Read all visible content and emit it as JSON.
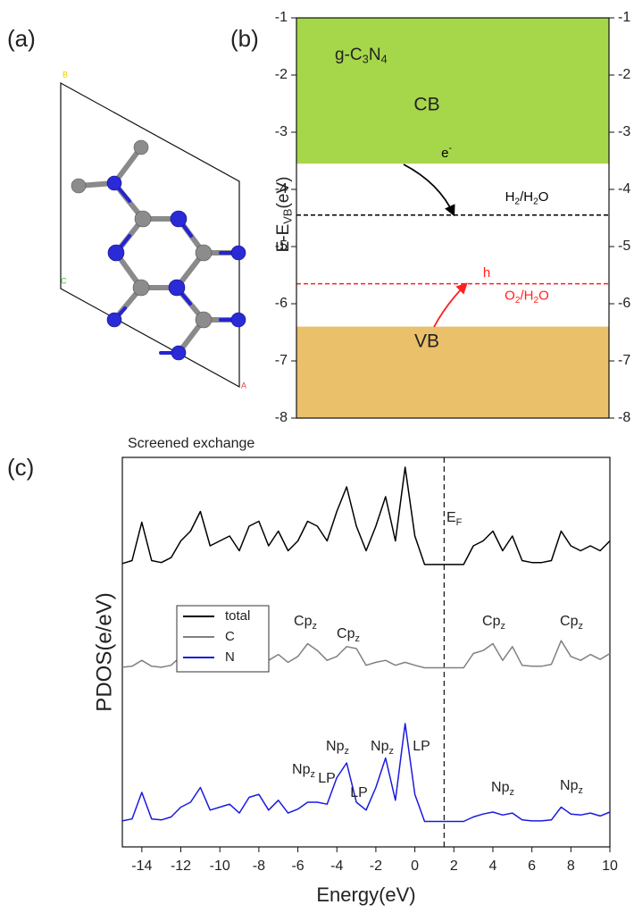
{
  "panel_a": {
    "label": "(a)",
    "axis_labels": [
      "B",
      "C",
      "A"
    ]
  },
  "chart_data": [
    {
      "type": "band",
      "label": "(b)",
      "ylabel_parts": [
        "E-E",
        "VB",
        "(eV)"
      ],
      "ylim": [
        -1,
        -8
      ],
      "yticks": [
        -1,
        -2,
        -3,
        -4,
        -5,
        -6,
        -7,
        -8
      ],
      "material_parts": [
        "g-C",
        "3",
        "N",
        "4"
      ],
      "bands": [
        {
          "name": "CB",
          "from": -1,
          "to": -3.55,
          "color": "#a6d64a"
        },
        {
          "name": "VB",
          "from": -6.4,
          "to": -8,
          "color": "#ebc06b"
        }
      ],
      "levels": [
        {
          "name_parts": [
            "H",
            "2",
            "/H",
            "2",
            "O"
          ],
          "value": -4.45,
          "color": "#000000"
        },
        {
          "name_parts": [
            "O",
            "2",
            "/H",
            "2",
            "O"
          ],
          "value": -5.65,
          "color": "#ff2020"
        }
      ],
      "carriers": [
        {
          "parts": [
            "e",
            "-"
          ],
          "color": "#000000"
        },
        {
          "parts": [
            "h"
          ],
          "color": "#ff2020"
        }
      ]
    },
    {
      "type": "line",
      "label": "(c)",
      "title": "Screened exchange",
      "xlabel": "Energy(eV)",
      "ylabel": "PDOS(e/eV)",
      "xlim": [
        -15,
        10
      ],
      "xticks": [
        -14,
        -12,
        -10,
        -8,
        -6,
        -4,
        -2,
        0,
        2,
        4,
        6,
        8,
        10
      ],
      "x": [
        -15,
        -14.5,
        -14,
        -13.5,
        -13,
        -12.5,
        -12,
        -11.5,
        -11,
        -10.5,
        -10,
        -9.5,
        -9,
        -8.5,
        -8,
        -7.5,
        -7,
        -6.5,
        -6,
        -5.5,
        -5,
        -4.5,
        -4,
        -3.5,
        -3,
        -2.5,
        -2,
        -1.5,
        -1,
        -0.5,
        0,
        0.5,
        1,
        1.5,
        2,
        2.5,
        3,
        3.5,
        4,
        4.5,
        5,
        5.5,
        6,
        6.5,
        7,
        7.5,
        8,
        8.5,
        9,
        9.5,
        10
      ],
      "series": [
        {
          "name": "total",
          "color": "#000000",
          "values": [
            0.2,
            0.5,
            4.4,
            0.5,
            0.3,
            0.8,
            2.5,
            3.5,
            5.5,
            2.0,
            2.5,
            3.0,
            1.5,
            4.0,
            4.5,
            2.0,
            3.5,
            1.5,
            2.5,
            4.5,
            4.0,
            2.5,
            5.5,
            8.0,
            4.0,
            1.5,
            4.0,
            7.0,
            2.5,
            10.0,
            3.0,
            0.1,
            0.1,
            0.1,
            0.1,
            0.1,
            2.0,
            2.5,
            3.5,
            1.5,
            3.0,
            0.5,
            0.3,
            0.3,
            0.5,
            3.5,
            2.0,
            1.5,
            2.0,
            1.5,
            2.5
          ]
        },
        {
          "name": "C",
          "color": "#808080",
          "values": [
            0.1,
            0.2,
            0.8,
            0.2,
            0.1,
            0.3,
            1.2,
            1.5,
            2.2,
            0.8,
            1.0,
            1.2,
            0.6,
            1.6,
            1.8,
            0.8,
            1.4,
            0.6,
            1.2,
            2.5,
            1.8,
            0.8,
            1.2,
            2.2,
            2.0,
            0.3,
            0.6,
            0.8,
            0.3,
            0.6,
            0.3,
            0.05,
            0.05,
            0.05,
            0.05,
            0.05,
            1.5,
            1.8,
            2.5,
            0.8,
            2.2,
            0.3,
            0.2,
            0.2,
            0.4,
            2.8,
            1.2,
            0.8,
            1.4,
            0.9,
            1.5
          ]
        },
        {
          "name": "N",
          "color": "#1a1adf",
          "values": [
            0.1,
            0.3,
            3.0,
            0.3,
            0.2,
            0.5,
            1.5,
            2.0,
            3.5,
            1.2,
            1.5,
            1.8,
            0.9,
            2.5,
            2.8,
            1.2,
            2.2,
            0.9,
            1.3,
            2.0,
            2.0,
            1.8,
            4.5,
            6.0,
            2.0,
            1.2,
            3.5,
            6.5,
            2.2,
            10.0,
            2.8,
            0.05,
            0.05,
            0.05,
            0.05,
            0.05,
            0.5,
            0.8,
            1.0,
            0.7,
            0.9,
            0.2,
            0.1,
            0.1,
            0.2,
            1.5,
            0.8,
            0.7,
            0.9,
            0.6,
            1.0
          ]
        }
      ],
      "fermi": {
        "value": 1.5,
        "label_parts": [
          "E",
          "F"
        ]
      },
      "annotations": [
        {
          "parts": [
            "Cp",
            "z"
          ]
        },
        {
          "parts": [
            "Cp",
            "z"
          ]
        },
        {
          "parts": [
            "Cp",
            "z"
          ]
        },
        {
          "parts": [
            "Cp",
            "z"
          ]
        },
        {
          "parts": [
            "Np",
            "z"
          ]
        },
        {
          "parts": [
            "Np",
            "z"
          ]
        },
        {
          "parts": [
            "Np",
            "z"
          ]
        },
        {
          "parts": [
            "Np",
            "z"
          ]
        },
        {
          "parts": [
            "Np",
            "z"
          ]
        },
        {
          "parts": [
            "LP"
          ]
        },
        {
          "parts": [
            "LP"
          ]
        },
        {
          "parts": [
            "LP"
          ]
        }
      ]
    }
  ]
}
